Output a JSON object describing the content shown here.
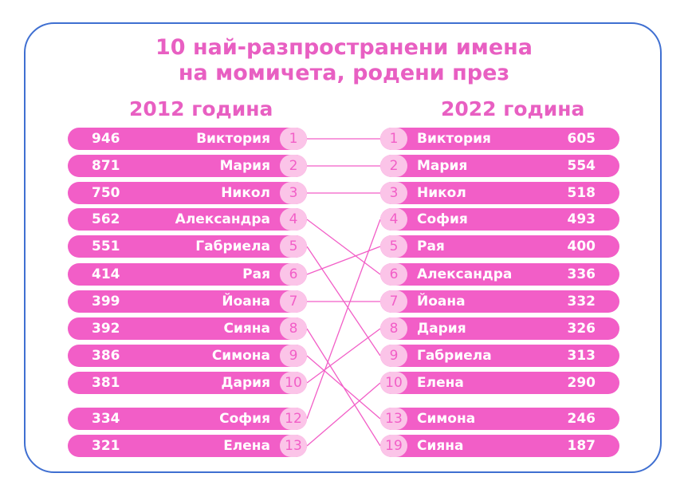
{
  "title_line1": "10 най-разпространени имена",
  "title_line2": "на момичета, родени през",
  "colors": {
    "accent": "#e85fc2",
    "bar": "#f25ec7",
    "rank_bg": "#fbc4e8",
    "frame": "#3f6fd1"
  },
  "chart_data": {
    "type": "table",
    "left": {
      "year_label": "2012 година",
      "rows": [
        {
          "value": "946",
          "name": "Виктория",
          "rank": "1"
        },
        {
          "value": "871",
          "name": "Мария",
          "rank": "2"
        },
        {
          "value": "750",
          "name": "Никол",
          "rank": "3"
        },
        {
          "value": "562",
          "name": "Александра",
          "rank": "4"
        },
        {
          "value": "551",
          "name": "Габриела",
          "rank": "5"
        },
        {
          "value": "414",
          "name": "Рая",
          "rank": "6"
        },
        {
          "value": "399",
          "name": "Йоана",
          "rank": "7"
        },
        {
          "value": "392",
          "name": "Сияна",
          "rank": "8"
        },
        {
          "value": "386",
          "name": "Симона",
          "rank": "9"
        },
        {
          "value": "381",
          "name": "Дария",
          "rank": "10"
        },
        {
          "value": "334",
          "name": "София",
          "rank": "12"
        },
        {
          "value": "321",
          "name": "Елена",
          "rank": "13"
        }
      ]
    },
    "right": {
      "year_label": "2022 година",
      "rows": [
        {
          "rank": "1",
          "name": "Виктория",
          "value": "605"
        },
        {
          "rank": "2",
          "name": "Мария",
          "value": "554"
        },
        {
          "rank": "3",
          "name": "Никол",
          "value": "518"
        },
        {
          "rank": "4",
          "name": "София",
          "value": "493"
        },
        {
          "rank": "5",
          "name": "Рая",
          "value": "400"
        },
        {
          "rank": "6",
          "name": "Александра",
          "value": "336"
        },
        {
          "rank": "7",
          "name": "Йоана",
          "value": "332"
        },
        {
          "rank": "8",
          "name": "Дария",
          "value": "326"
        },
        {
          "rank": "9",
          "name": "Габриела",
          "value": "313"
        },
        {
          "rank": "10",
          "name": "Елена",
          "value": "290"
        },
        {
          "rank": "13",
          "name": "Симона",
          "value": "246"
        },
        {
          "rank": "19",
          "name": "Сияна",
          "value": "187"
        }
      ]
    },
    "links": [
      [
        0,
        0
      ],
      [
        1,
        1
      ],
      [
        2,
        2
      ],
      [
        3,
        5
      ],
      [
        4,
        8
      ],
      [
        5,
        4
      ],
      [
        6,
        6
      ],
      [
        7,
        11
      ],
      [
        8,
        10
      ],
      [
        9,
        7
      ],
      [
        10,
        3
      ],
      [
        11,
        9
      ]
    ]
  }
}
